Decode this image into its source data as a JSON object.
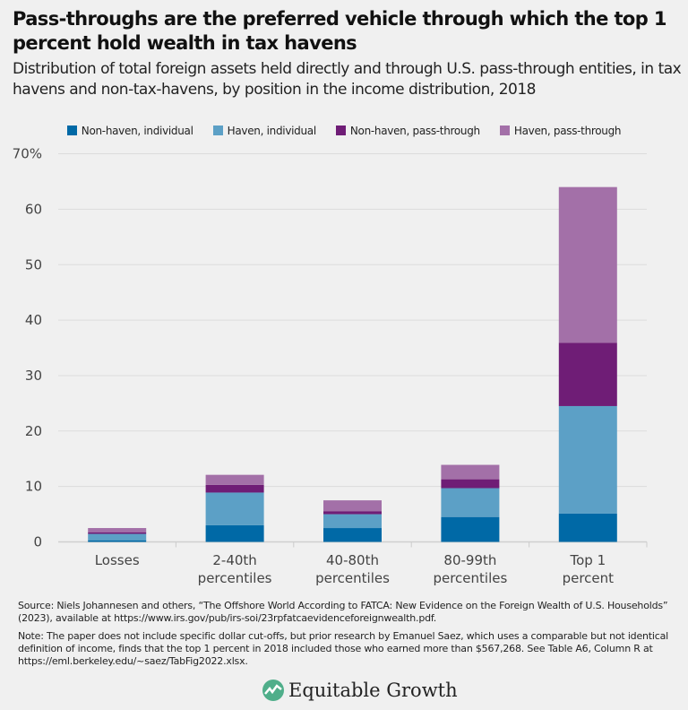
{
  "title": "Pass-throughs are the preferred vehicle through which the top 1 percent hold wealth in tax havens",
  "subtitle": "Distribution of total foreign assets held directly and through U.S. pass-through entities, in tax havens and non-tax-havens, by position in the income distribution, 2018",
  "chart_data": {
    "type": "bar",
    "stacked": true,
    "categories": [
      [
        "Losses"
      ],
      [
        "2-40th",
        "percentiles"
      ],
      [
        "40-80th",
        "percentiles"
      ],
      [
        "80-99th",
        "percentiles"
      ],
      [
        "Top 1",
        "percent"
      ]
    ],
    "series": [
      {
        "name": "Non-haven, individual",
        "color": "#0069a6",
        "values": [
          0.3,
          3.0,
          2.5,
          4.5,
          5.1
        ]
      },
      {
        "name": "Haven, individual",
        "color": "#5ca0c6",
        "values": [
          1.15,
          5.9,
          2.5,
          5.2,
          19.4
        ]
      },
      {
        "name": "Non-haven, pass-through",
        "color": "#6f1d76",
        "values": [
          0.3,
          1.4,
          0.55,
          1.6,
          11.4
        ]
      },
      {
        "name": "Haven, pass-through",
        "color": "#a370a8",
        "values": [
          0.75,
          1.8,
          1.95,
          2.6,
          28.1
        ]
      }
    ],
    "ylim": [
      0,
      70
    ],
    "yticks": [
      "0",
      "10",
      "20",
      "30",
      "40",
      "50",
      "60",
      "70%"
    ],
    "grid": true,
    "legend": "top"
  },
  "source": "Source: Niels Johannesen and others, “The Offshore World According to FATCA: New Evidence on the Foreign Wealth of U.S. Households” (2023), available at https://www.irs.gov/pub/irs-soi/23rpfatcaevidenceforeignwealth.pdf.",
  "note": "Note: The paper does not include specific dollar cut-offs, but prior research by Emanuel Saez, which uses a comparable but not identical definition of income, finds that the top 1 percent in 2018 included those who earned more than $567,268. See Table A6, Column R at https://eml.berkeley.edu/~saez/TabFig2022.xlsx.",
  "logo": {
    "text": "Equitable Growth",
    "color": "#4fae8a"
  }
}
